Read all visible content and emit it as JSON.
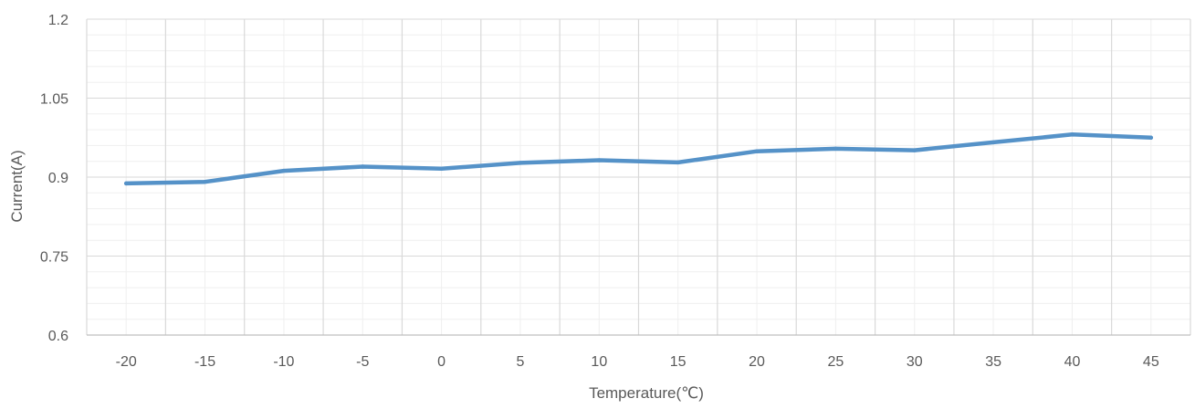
{
  "chart_data": {
    "type": "line",
    "title": "",
    "xlabel": "Temperature(℃)",
    "ylabel": "Current(A)",
    "categories": [
      "-20",
      "-15",
      "-10",
      "-5",
      "0",
      "5",
      "10",
      "15",
      "20",
      "25",
      "30",
      "35",
      "40",
      "45"
    ],
    "series": [
      {
        "values": [
          0.888,
          0.891,
          0.912,
          0.92,
          0.916,
          0.927,
          0.932,
          0.928,
          0.949,
          0.954,
          0.951,
          0.966,
          0.981,
          0.975
        ]
      }
    ],
    "ylim": [
      0.6,
      1.2
    ],
    "yticks": [
      "0.6",
      "0.75",
      "0.9",
      "1.05",
      "1.2"
    ],
    "grid": true,
    "legend": "none",
    "colors": {
      "line": "#5592C8",
      "major_grid": "#D9D9D9",
      "minor_grid": "#EFEFEF",
      "text": "#595959"
    }
  }
}
